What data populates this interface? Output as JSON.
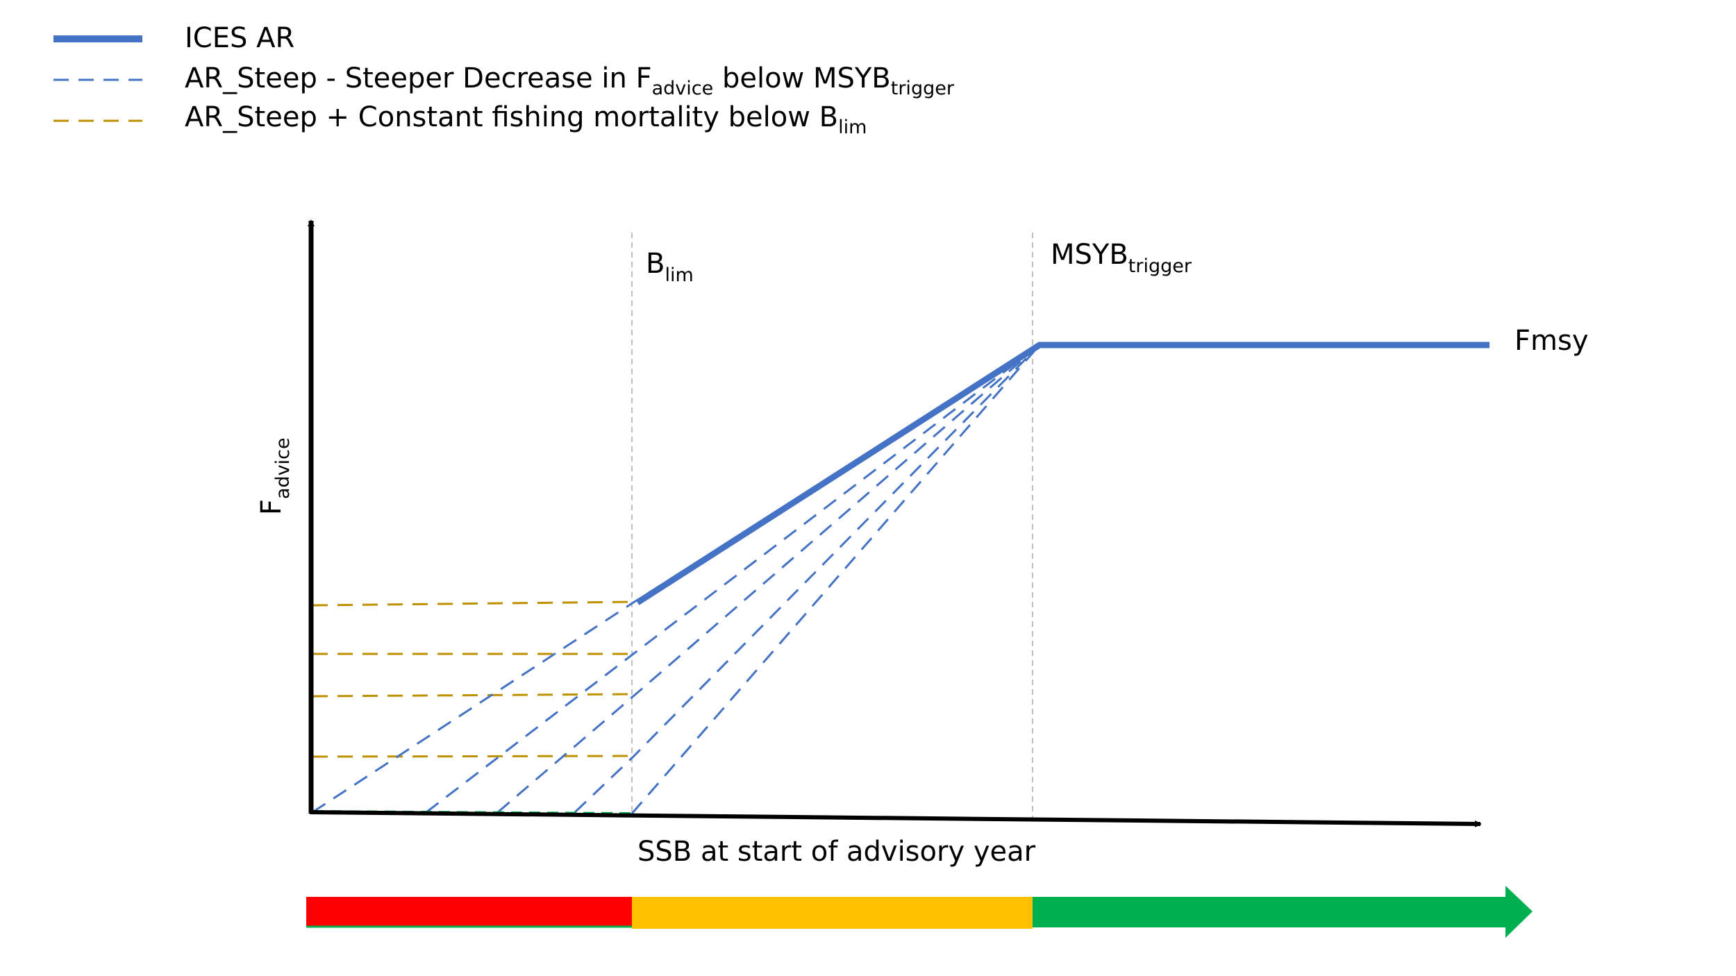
{
  "legend": [
    {
      "text": "ICES AR",
      "sub": "",
      "rest": "",
      "sub2": "",
      "style": "solid",
      "color": "#4472C4"
    },
    {
      "text": "AR_Steep - Steeper Decrease in F",
      "sub": "advice",
      "rest": " below MSYB",
      "sub2": "trigger",
      "style": "dashed",
      "color": "#4472C4"
    },
    {
      "text": "AR_Steep + Constant fishing mortality below B",
      "sub": "lim",
      "rest": "",
      "sub2": "",
      "style": "dashed",
      "color": "#BF9000"
    }
  ],
  "labels": {
    "blim_main": "B",
    "blim_sub": "lim",
    "msyb_main": "MSYB",
    "msyb_sub": "trigger",
    "fmsy": "Fmsy",
    "y_axis_main": "F",
    "y_axis_sub": "advice",
    "x_axis": "SSB at start of advisory year"
  },
  "colors": {
    "ices_ar": "#4472C4",
    "ar_steep": "#4472C4",
    "constant_f": "#BF9000",
    "zone_red": "#FF0000",
    "zone_orange": "#FFC000",
    "zone_green": "#00B050",
    "axis": "#000000",
    "ref_line": "#BFBFBF"
  },
  "zones": [
    "red",
    "orange",
    "green"
  ]
}
